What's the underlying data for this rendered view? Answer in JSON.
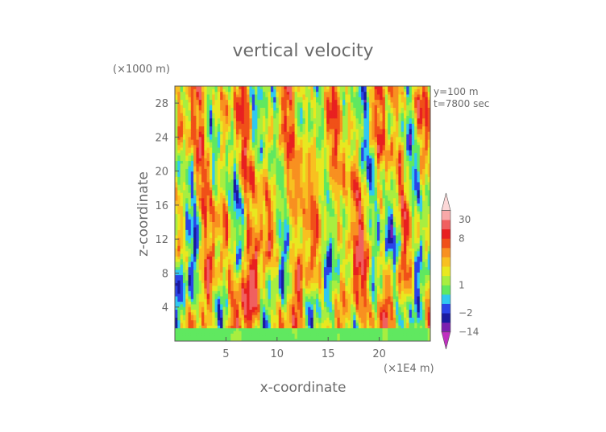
{
  "chart_data": {
    "type": "heatmap",
    "title": "vertical velocity",
    "xlabel": "x-coordinate",
    "ylabel": "z-coordinate",
    "x_unit": "(×1E4 m)",
    "y_unit": "(×1000 m)",
    "xlim": [
      0,
      25
    ],
    "ylim": [
      0,
      30
    ],
    "x_ticks": [
      5,
      10,
      15,
      20
    ],
    "y_ticks": [
      4,
      8,
      12,
      16,
      20,
      24,
      28
    ],
    "annotations": [
      "y=100  m",
      "t=7800 sec"
    ],
    "colorbar": {
      "labels": [
        "30",
        "8",
        "1",
        "−2",
        "−14"
      ],
      "levels": [
        -40,
        -14,
        -6,
        -2,
        -1,
        0,
        1,
        2,
        3,
        4,
        6,
        8,
        15,
        30,
        45
      ],
      "colors": [
        "#c030c0",
        "#7a1fb0",
        "#1a1aa0",
        "#2a44e8",
        "#30c8f0",
        "#60e860",
        "#a8ee40",
        "#e8e820",
        "#f8c020",
        "#f89020",
        "#f05018",
        "#e82020",
        "#f06060",
        "#f8a8a8",
        "#fcd8d8"
      ],
      "extend": "both"
    },
    "field_description": "Turbulent w-field: near-uniform green band below z=2, large updraft (warm) plumes around x=5-8 and x=17-20, downdrafts (blue) elsewhere, fine-scale mixing above z=10"
  }
}
